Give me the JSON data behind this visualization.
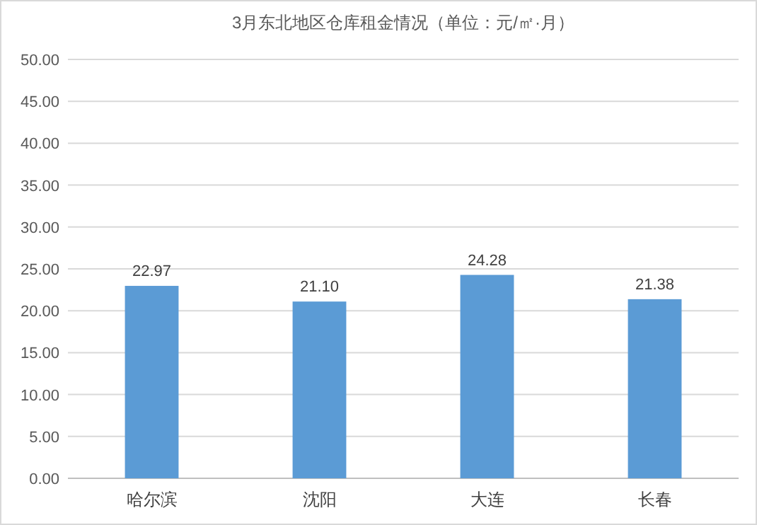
{
  "chart_data": {
    "type": "bar",
    "title": "3月东北地区仓库租金情况（单位：元/㎡·月）",
    "categories": [
      "哈尔滨",
      "沈阳",
      "大连",
      "长春"
    ],
    "values": [
      22.97,
      21.1,
      24.28,
      21.38
    ],
    "value_labels": [
      "22.97",
      "21.10",
      "24.28",
      "21.38"
    ],
    "color": "#5b9bd5",
    "ylim": [
      0,
      50
    ],
    "yticks": [
      {
        "value": 0,
        "label": "0.00"
      },
      {
        "value": 5,
        "label": "5.00"
      },
      {
        "value": 10,
        "label": "10.00"
      },
      {
        "value": 15,
        "label": "15.00"
      },
      {
        "value": 20,
        "label": "20.00"
      },
      {
        "value": 25,
        "label": "25.00"
      },
      {
        "value": 30,
        "label": "30.00"
      },
      {
        "value": 35,
        "label": "35.00"
      },
      {
        "value": 40,
        "label": "40.00"
      },
      {
        "value": 45,
        "label": "45.00"
      },
      {
        "value": 50,
        "label": "50.00"
      }
    ],
    "grid": "y"
  }
}
